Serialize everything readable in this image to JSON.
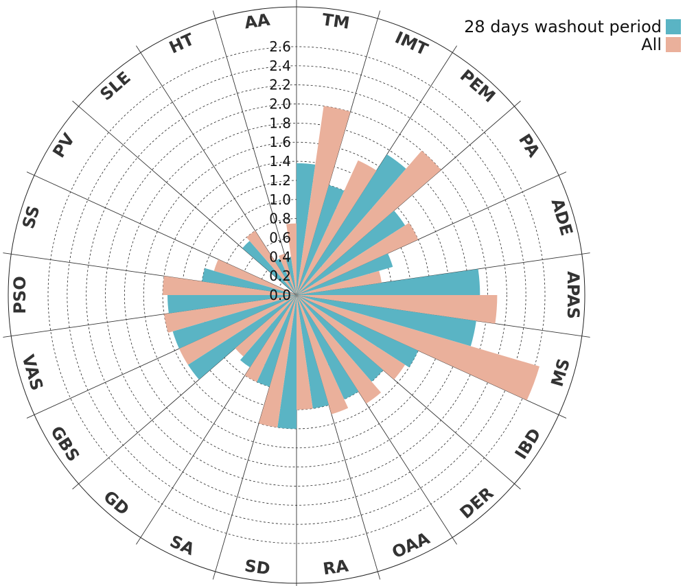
{
  "chart_data": {
    "type": "bar",
    "polar": true,
    "categories": [
      "TM",
      "IMT",
      "PEM",
      "PA",
      "ADE",
      "APAS",
      "MS",
      "IBD",
      "DER",
      "OAA",
      "RA",
      "SD",
      "SA",
      "GD",
      "GBS",
      "VAS",
      "PSO",
      "SS",
      "PV",
      "SLE",
      "HT",
      "AA"
    ],
    "series": [
      {
        "name": "28 days washout period",
        "color": "#5ab4c4",
        "values": [
          1.38,
          1.2,
          1.75,
          1.35,
          1.05,
          1.92,
          1.9,
          1.4,
          1.2,
          1.2,
          1.2,
          1.4,
          1.0,
          0.9,
          1.35,
          1.35,
          1.35,
          1.0,
          0.0,
          0.75,
          0.42,
          0.4
        ]
      },
      {
        "name": "All",
        "color": "#eab09b",
        "values": [
          2.0,
          1.55,
          2.0,
          1.4,
          0.9,
          2.1,
          2.65,
          1.35,
          1.35,
          1.3,
          1.2,
          1.4,
          1.0,
          0.85,
          1.35,
          1.4,
          1.4,
          0.9,
          0.0,
          0.8,
          0.45,
          0.75
        ]
      }
    ],
    "rticks": [
      "0.0",
      "0.2",
      "0.4",
      "0.6",
      "0.8",
      "1.0",
      "1.2",
      "1.4",
      "1.6",
      "1.8",
      "2.0",
      "2.2",
      "2.4",
      "2.6"
    ],
    "rlim": [
      0,
      2.6
    ],
    "grid": true,
    "legend_position": "top-right"
  }
}
